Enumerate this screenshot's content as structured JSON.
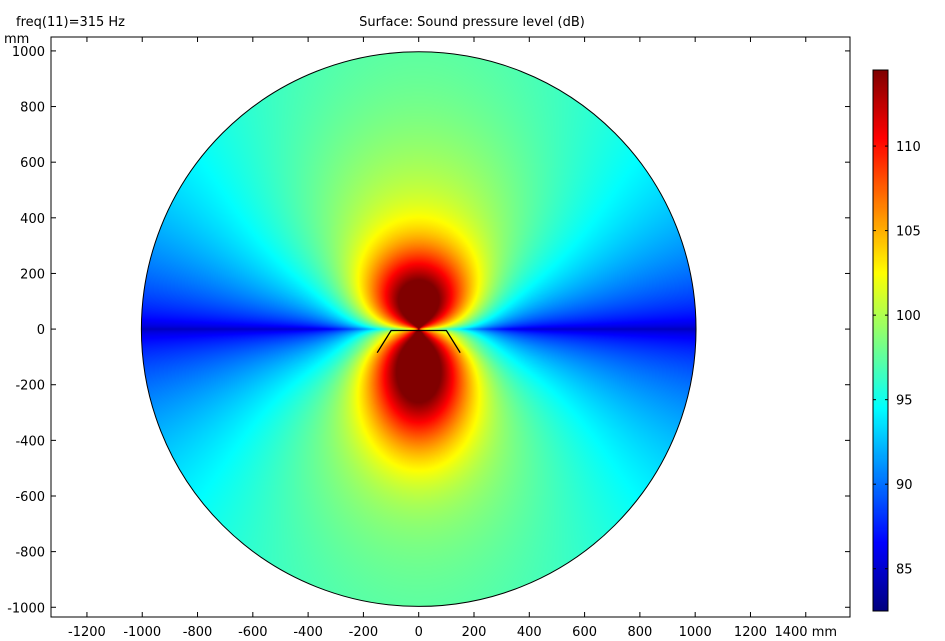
{
  "header": {
    "freq_label": "freq(11)=315 Hz",
    "title": "Surface: Sound pressure level (dB)"
  },
  "chart_data": {
    "type": "heatmap",
    "title": "Surface: Sound pressure level (dB)",
    "subtitle": "freq(11)=315 Hz",
    "xlabel": "mm",
    "ylabel": "mm",
    "xlim": [
      -1330,
      1560
    ],
    "ylim": [
      -1035,
      1050
    ],
    "x_ticks": [
      -1200,
      -1000,
      -800,
      -600,
      -400,
      -200,
      0,
      200,
      400,
      600,
      800,
      1000,
      1200,
      1400
    ],
    "y_ticks": [
      1000,
      800,
      600,
      400,
      200,
      0,
      -200,
      -400,
      -600,
      -800,
      -1000
    ],
    "domain": {
      "shape": "circle",
      "center": [
        0,
        0
      ],
      "radius": 1000
    },
    "speaker_outline": [
      [
        -150,
        -85
      ],
      [
        -100,
        -5
      ],
      [
        100,
        -5
      ],
      [
        150,
        -85
      ]
    ],
    "colorbar": {
      "colormap": "jet",
      "min": 82.5,
      "max": 114.5,
      "ticks": [
        85,
        90,
        95,
        100,
        105,
        110
      ]
    },
    "field_summary": {
      "max_level_near_source": 112,
      "axis_level_near_center": 104,
      "axis_level_far": 97,
      "side_null_level": 84
    },
    "grid": false
  }
}
